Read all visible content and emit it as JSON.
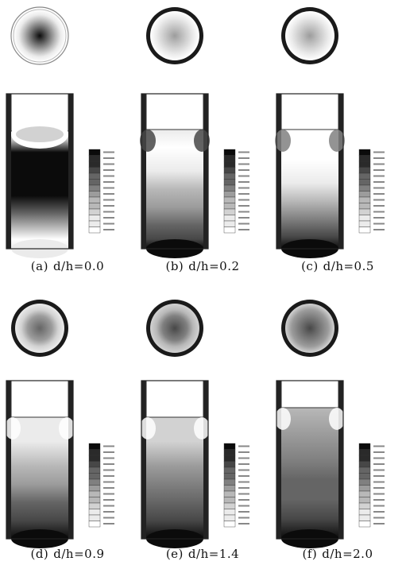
{
  "figure": {
    "panels": [
      {
        "label": "(a)",
        "param": "d/h=0.0"
      },
      {
        "label": "(b)",
        "param": "d/h=0.2"
      },
      {
        "label": "(c)",
        "param": "d/h=0.5"
      },
      {
        "label": "(d)",
        "param": "d/h=0.9"
      },
      {
        "label": "(e)",
        "param": "d/h=1.4"
      },
      {
        "label": "(f)",
        "param": "d/h=2.0"
      }
    ],
    "colors": {
      "ink": "#111111",
      "gray_scale": [
        "#0b0b0b",
        "#2a2a2a",
        "#474747",
        "#656565",
        "#808080",
        "#9c9c9c",
        "#b8b8b8",
        "#d2d2d2",
        "#ebebeb",
        "#ffffff"
      ]
    }
  }
}
